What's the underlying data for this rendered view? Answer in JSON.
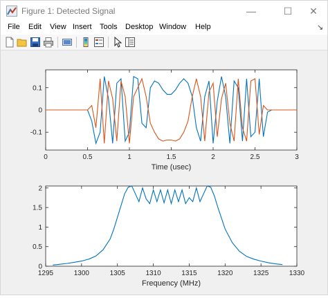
{
  "window": {
    "title": "Figure 1: Detected Signal",
    "minimize_glyph": "—",
    "maximize_glyph": "☐",
    "close_glyph": "✕"
  },
  "menu": [
    "File",
    "Edit",
    "View",
    "Insert",
    "Tools",
    "Desktop",
    "Window",
    "Help"
  ],
  "menu_more_glyph": "↘",
  "toolbar": {
    "icons": [
      "new-figure-icon",
      "open-file-icon",
      "save-icon",
      "print-icon",
      "link-plot-icon",
      "colorbar-icon",
      "legend-icon",
      "edit-plot-pointer-icon",
      "property-inspector-icon"
    ]
  },
  "colors": {
    "series_blue": "#0072bd",
    "series_orange": "#d95319",
    "axes_bg": "#ffffff",
    "figure_bg": "#f0f0f0"
  },
  "chart_data": [
    {
      "type": "line",
      "xlabel": "Time (usec)",
      "ylabel": "",
      "title": "",
      "xlim": [
        0,
        3
      ],
      "ylim": [
        -0.18,
        0.18
      ],
      "xticks": [
        "0",
        "0.5",
        "1",
        "1.5",
        "2",
        "2.5",
        "3"
      ],
      "yticks": [
        "-0.1",
        "0",
        "0.1"
      ],
      "grid": false,
      "series": [
        {
          "color": "#0072bd",
          "x": [
            0,
            0.5,
            0.55,
            0.6,
            0.65,
            0.7,
            0.75,
            0.8,
            0.85,
            0.9,
            0.95,
            1.0,
            1.05,
            1.1,
            1.15,
            1.2,
            1.25,
            1.3,
            1.35,
            1.4,
            1.45,
            1.5,
            1.55,
            1.6,
            1.65,
            1.7,
            1.75,
            1.8,
            1.85,
            1.9,
            1.95,
            2.0,
            2.05,
            2.1,
            2.15,
            2.2,
            2.25,
            2.3,
            2.35,
            2.4,
            2.45,
            2.5,
            2.55,
            2.6,
            2.65,
            2.7,
            3.0
          ],
          "y": [
            0,
            0,
            -0.05,
            -0.15,
            -0.1,
            0.15,
            0.05,
            -0.15,
            0.12,
            0.14,
            -0.14,
            -0.1,
            0.15,
            0.14,
            -0.06,
            -0.08,
            0.1,
            0.13,
            0.12,
            0.09,
            0.07,
            0.07,
            0.09,
            0.12,
            0.14,
            0.12,
            0.06,
            -0.08,
            -0.14,
            0.06,
            0.13,
            -0.15,
            0.04,
            0.15,
            0.06,
            -0.15,
            0.13,
            0.1,
            -0.14,
            0.14,
            -0.12,
            -0.1,
            0.14,
            -0.12,
            -0.01,
            0,
            0
          ]
        },
        {
          "color": "#d95319",
          "x": [
            0,
            0.5,
            0.55,
            0.6,
            0.65,
            0.7,
            0.75,
            0.8,
            0.85,
            0.9,
            0.95,
            1.0,
            1.05,
            1.1,
            1.15,
            1.2,
            1.25,
            1.3,
            1.35,
            1.4,
            1.45,
            1.5,
            1.55,
            1.6,
            1.65,
            1.7,
            1.75,
            1.8,
            1.85,
            1.9,
            1.95,
            2.0,
            2.05,
            2.1,
            2.15,
            2.2,
            2.25,
            2.3,
            2.35,
            2.4,
            2.45,
            2.5,
            2.55,
            2.6,
            2.65,
            2.7,
            3.0
          ],
          "y": [
            0,
            0,
            0.02,
            -0.08,
            0.14,
            -0.15,
            0.13,
            0.05,
            -0.14,
            0.13,
            0.06,
            -0.15,
            0.06,
            0.1,
            0.14,
            0.06,
            -0.06,
            -0.1,
            -0.13,
            -0.14,
            -0.135,
            -0.135,
            -0.14,
            -0.13,
            -0.1,
            -0.05,
            0.06,
            0.14,
            0.06,
            -0.14,
            0.08,
            0.12,
            -0.12,
            0.05,
            0.12,
            -0.06,
            -0.14,
            0.14,
            -0.08,
            -0.14,
            0.13,
            0.14,
            -0.11,
            0.02,
            0.0,
            0,
            0
          ]
        }
      ]
    },
    {
      "type": "line",
      "xlabel": "Frequency (MHz)",
      "ylabel": "",
      "title": "",
      "xlim": [
        1295,
        1330
      ],
      "ylim": [
        0,
        2.05
      ],
      "xticks": [
        "1295",
        "1300",
        "1305",
        "1310",
        "1315",
        "1320",
        "1325",
        "1330"
      ],
      "yticks": [
        "0",
        "0.5",
        "1",
        "1.5",
        "2"
      ],
      "grid": false,
      "series": [
        {
          "color": "#0072bd",
          "x": [
            1296,
            1297,
            1298,
            1299,
            1300,
            1301,
            1302,
            1303,
            1304,
            1304.5,
            1305,
            1305.5,
            1306,
            1306.5,
            1307,
            1307.5,
            1308,
            1308.5,
            1309,
            1309.5,
            1310,
            1310.5,
            1311,
            1311.5,
            1312,
            1312.5,
            1313,
            1313.5,
            1314,
            1314.5,
            1315,
            1315.5,
            1316,
            1316.5,
            1317,
            1317.5,
            1318,
            1318.5,
            1319,
            1320,
            1321,
            1322,
            1323,
            1324,
            1325,
            1326,
            1327,
            1328
          ],
          "y": [
            0.03,
            0.05,
            0.07,
            0.1,
            0.13,
            0.18,
            0.26,
            0.42,
            0.7,
            0.95,
            1.25,
            1.55,
            1.85,
            2.02,
            2.05,
            1.85,
            1.65,
            2.0,
            1.72,
            1.6,
            1.95,
            1.65,
            1.95,
            1.62,
            1.95,
            1.6,
            1.95,
            1.65,
            1.95,
            1.6,
            1.75,
            1.65,
            2.0,
            1.65,
            1.85,
            2.05,
            2.02,
            1.8,
            1.5,
            0.95,
            0.6,
            0.38,
            0.25,
            0.18,
            0.13,
            0.09,
            0.06,
            0.04
          ]
        }
      ]
    }
  ]
}
